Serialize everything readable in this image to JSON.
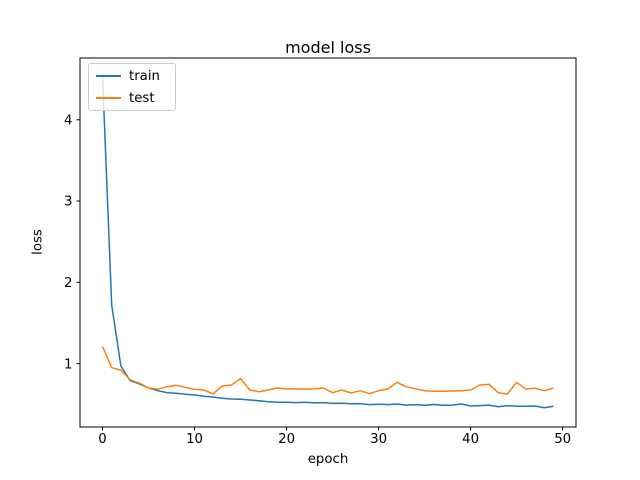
{
  "figure": {
    "title": "model loss",
    "xlabel": "epoch",
    "ylabel": "loss",
    "background_color": "#ffffff",
    "legend": {
      "position": "upper left",
      "entries": [
        {
          "label": "train",
          "color": "#1f77b4"
        },
        {
          "label": "test",
          "color": "#ff7f0e"
        }
      ]
    }
  },
  "chart_data": {
    "type": "line",
    "title": "model loss",
    "xlabel": "epoch",
    "ylabel": "loss",
    "grid": false,
    "legend_position": "upper left",
    "xlim": [
      -2.45,
      51.45
    ],
    "ylim": [
      0.22,
      4.76
    ],
    "xticks": [
      0,
      10,
      20,
      30,
      40,
      50
    ],
    "yticks": [
      1,
      2,
      3,
      4
    ],
    "x": [
      0,
      1,
      2,
      3,
      4,
      5,
      6,
      7,
      8,
      9,
      10,
      11,
      12,
      13,
      14,
      15,
      16,
      17,
      18,
      19,
      20,
      21,
      22,
      23,
      24,
      25,
      26,
      27,
      28,
      29,
      30,
      31,
      32,
      33,
      34,
      35,
      36,
      37,
      38,
      39,
      40,
      41,
      42,
      43,
      44,
      45,
      46,
      47,
      48,
      49
    ],
    "series": [
      {
        "name": "train",
        "color": "#1f77b4",
        "values": [
          4.55,
          1.72,
          0.97,
          0.79,
          0.75,
          0.7,
          0.667,
          0.642,
          0.635,
          0.622,
          0.614,
          0.598,
          0.589,
          0.573,
          0.565,
          0.561,
          0.552,
          0.544,
          0.531,
          0.524,
          0.524,
          0.52,
          0.524,
          0.516,
          0.52,
          0.51,
          0.512,
          0.505,
          0.508,
          0.495,
          0.5,
          0.495,
          0.503,
          0.49,
          0.495,
          0.488,
          0.497,
          0.487,
          0.49,
          0.503,
          0.478,
          0.483,
          0.49,
          0.468,
          0.483,
          0.476,
          0.476,
          0.478,
          0.458,
          0.476
        ]
      },
      {
        "name": "test",
        "color": "#ff7f0e",
        "values": [
          1.21,
          0.95,
          0.92,
          0.8,
          0.76,
          0.7,
          0.684,
          0.716,
          0.733,
          0.708,
          0.684,
          0.675,
          0.626,
          0.724,
          0.737,
          0.815,
          0.675,
          0.654,
          0.675,
          0.7,
          0.688,
          0.691,
          0.684,
          0.688,
          0.7,
          0.642,
          0.675,
          0.638,
          0.667,
          0.63,
          0.667,
          0.688,
          0.77,
          0.716,
          0.691,
          0.667,
          0.659,
          0.659,
          0.663,
          0.667,
          0.675,
          0.737,
          0.745,
          0.642,
          0.626,
          0.77,
          0.688,
          0.696,
          0.667,
          0.7
        ]
      }
    ]
  }
}
